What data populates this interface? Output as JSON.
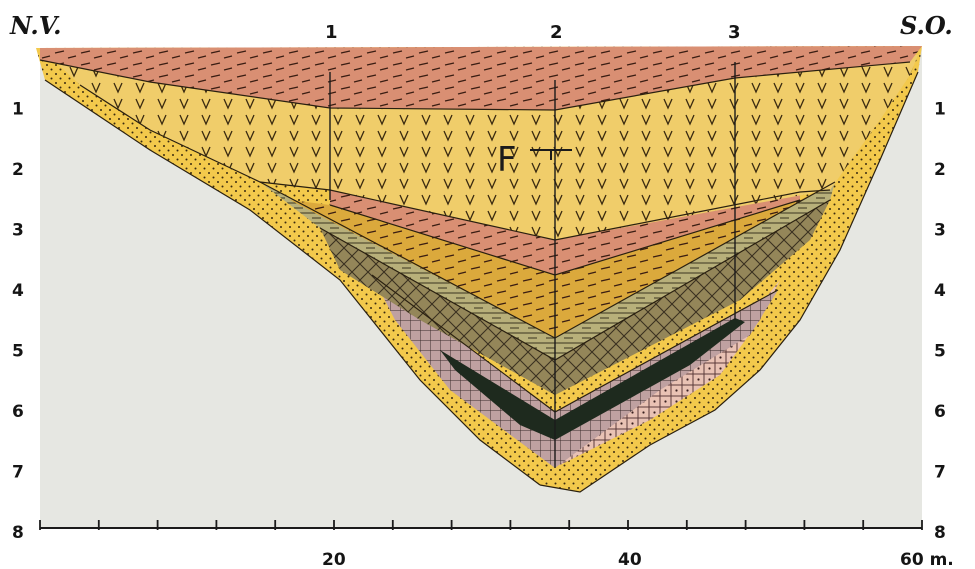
{
  "section": {
    "left_corner": "N.V.",
    "right_corner": "S.O.",
    "borehole_labels": [
      "1",
      "2",
      "3"
    ],
    "fault_label": "F",
    "depth_ticks_left": [
      "1",
      "2",
      "3",
      "4",
      "5",
      "6",
      "7",
      "8"
    ],
    "depth_ticks_right": [
      "1",
      "2",
      "3",
      "4",
      "5",
      "6",
      "7",
      "8"
    ],
    "distance_labels": [
      "20",
      "40",
      "60 m."
    ],
    "depth_range_m": [
      0,
      8
    ],
    "distance_range_m": [
      0,
      60
    ]
  },
  "colors": {
    "background": "#e6e7e2",
    "surface_band": "#d98f73",
    "yellow_v_layer": "#f0cd6a",
    "sand_layer": "#f3c94c",
    "olive_hatch": "#b8b07a",
    "gold_layer": "#dba93c",
    "crosshatch": "#948659",
    "mauve_grid": "#bfa1a1",
    "dark_band": "#1e2a1e"
  }
}
